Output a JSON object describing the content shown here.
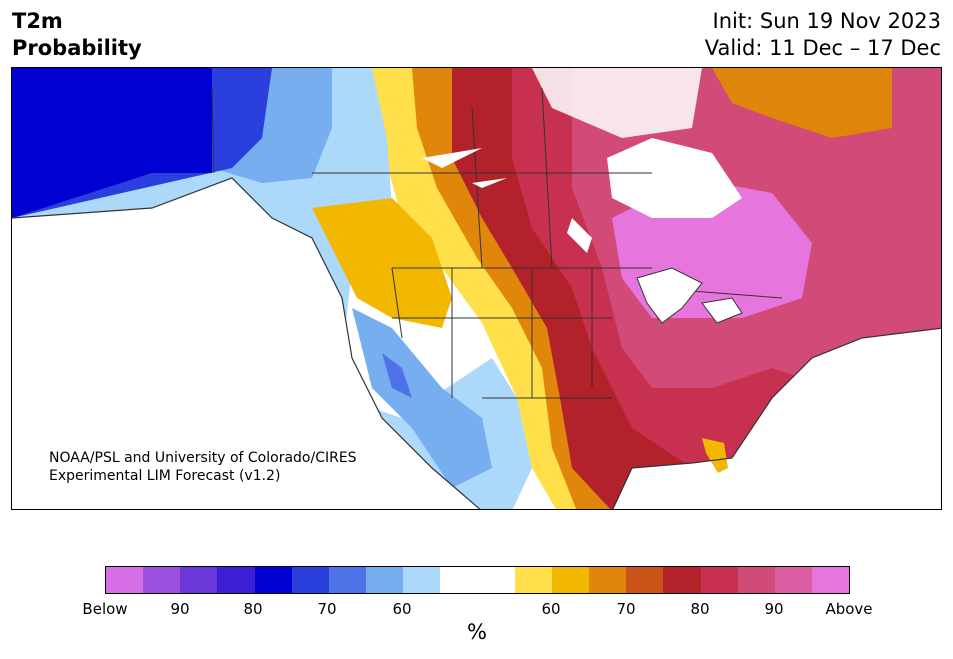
{
  "header": {
    "title_line1": "T2m",
    "title_line2": "Probability",
    "init": "Init: Sun 19 Nov 2023",
    "valid": "Valid: 11 Dec – 17 Dec"
  },
  "map": {
    "credit_line1": "NOAA/PSL and University of Colorado/CIRES",
    "credit_line2": "Experimental LIM Forecast (v1.2)"
  },
  "colorbar": {
    "colors": [
      "#d66ee6",
      "#9b4fe0",
      "#6a37d8",
      "#3a1fd4",
      "#0000d0",
      "#2a3fdc",
      "#4e73e8",
      "#77aef0",
      "#acd8fa",
      "#ffffff",
      "#ffffff",
      "#ffe04a",
      "#f2b800",
      "#e0860a",
      "#c95318",
      "#b3222a",
      "#c8304f",
      "#d24a78",
      "#dc5fa6",
      "#e676dd"
    ],
    "tick_labels": [
      "Below",
      "90",
      "80",
      "70",
      "60",
      "60",
      "70",
      "80",
      "90",
      "Above"
    ],
    "unit": "%"
  },
  "colors": {
    "above_strong": "#d24a78",
    "above_max": "#e676dd",
    "below_max": "#0000d0",
    "neutral": "#ffffff"
  }
}
